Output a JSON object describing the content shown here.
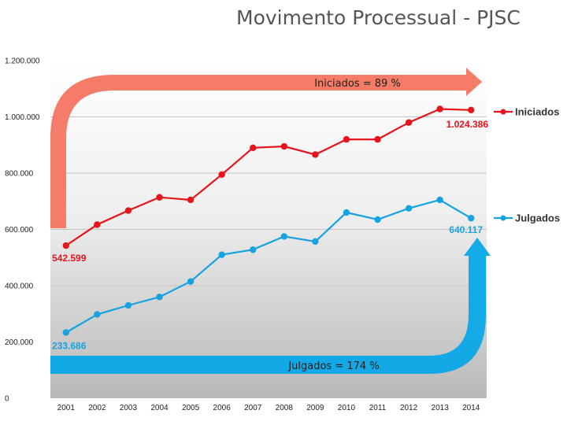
{
  "slide": {
    "title": "Movimento Processual - PJSC"
  },
  "chart_data": {
    "type": "line",
    "title": "Movimento Processual - PJSC",
    "x": [
      "2001",
      "2002",
      "2003",
      "2004",
      "2005",
      "2006",
      "2007",
      "2008",
      "2009",
      "2010",
      "2011",
      "2012",
      "2013",
      "2014"
    ],
    "y_ticks": [
      "0",
      "200.000",
      "400.000",
      "600.000",
      "800.000",
      "1.000.000",
      "1.200.000"
    ],
    "ylim": [
      0,
      1200000
    ],
    "grid": true,
    "legend_position": "right",
    "series": [
      {
        "name": "Iniciados",
        "color": "#e8141c",
        "values": [
          542599,
          617000,
          667000,
          714000,
          705000,
          795000,
          890000,
          895000,
          866000,
          920000,
          920000,
          980000,
          1028000,
          1024386
        ],
        "first_label": "542.599",
        "last_label": "1.024.386"
      },
      {
        "name": "Julgados",
        "color": "#16a3e0",
        "values": [
          233686,
          298000,
          330000,
          360000,
          415000,
          510000,
          528000,
          575000,
          557000,
          660000,
          635000,
          675000,
          705000,
          640117
        ],
        "first_label": "233.686",
        "last_label": "640.117"
      }
    ],
    "annotations": [
      {
        "text": "Iniciados = 89 %",
        "color": "#f47560"
      },
      {
        "text": "Julgados = 174 %",
        "color": "#0aa6e8"
      }
    ]
  }
}
